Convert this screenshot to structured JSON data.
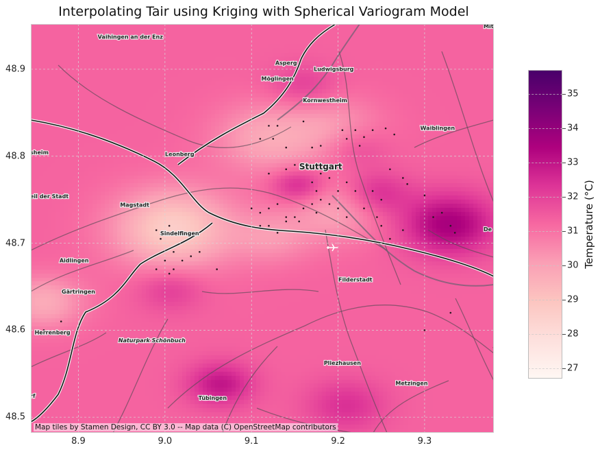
{
  "title": "Interpolating Tair using Kriging with Spherical Variogram Model",
  "map": {
    "lon_range": [
      8.845,
      9.38
    ],
    "lat_range": [
      48.482,
      48.952
    ],
    "x_ticks": [
      "8.9",
      "9.0",
      "9.1",
      "9.2",
      "9.3"
    ],
    "x_tick_values": [
      8.9,
      9.0,
      9.1,
      9.2,
      9.3
    ],
    "y_ticks": [
      "48.5",
      "48.6",
      "48.7",
      "48.8",
      "48.9"
    ],
    "y_tick_values": [
      48.5,
      48.6,
      48.7,
      48.8,
      48.9
    ],
    "grid": true,
    "base_color": "#e8609f",
    "places": [
      {
        "name": "Vaihingen an der Enz",
        "lon": 8.96,
        "lat": 48.935
      },
      {
        "name": "Asperg",
        "lon": 9.14,
        "lat": 48.905
      },
      {
        "name": "Ludwigsburg",
        "lon": 9.195,
        "lat": 48.898
      },
      {
        "name": "Möglingen",
        "lon": 9.13,
        "lat": 48.887
      },
      {
        "name": "Kornwestheim",
        "lon": 9.185,
        "lat": 48.862
      },
      {
        "name": "Waiblingen",
        "lon": 9.315,
        "lat": 48.83
      },
      {
        "name": "Leonberg",
        "lon": 9.017,
        "lat": 48.8
      },
      {
        "name": "Stuttgart",
        "lon": 9.18,
        "lat": 48.785
      },
      {
        "name": "Magstadt",
        "lon": 8.965,
        "lat": 48.742
      },
      {
        "name": "Sindelfingen",
        "lon": 9.017,
        "lat": 48.709
      },
      {
        "name": "Aidlingen",
        "lon": 8.895,
        "lat": 48.678
      },
      {
        "name": "Filderstadt",
        "lon": 9.22,
        "lat": 48.656
      },
      {
        "name": "Gärtringen",
        "lon": 8.9,
        "lat": 48.642
      },
      {
        "name": "Herrenberg",
        "lon": 8.87,
        "lat": 48.595
      },
      {
        "name": "Naturpark Schönbuch",
        "lon": 8.985,
        "lat": 48.586
      },
      {
        "name": "Pliezhausen",
        "lon": 9.205,
        "lat": 48.56
      },
      {
        "name": "Metzingen",
        "lon": 9.285,
        "lat": 48.537
      },
      {
        "name": "Tübingen",
        "lon": 9.055,
        "lat": 48.52
      }
    ],
    "edge_labels": [
      "Mit",
      "sheim",
      "eil der Stadt",
      "De",
      "rf"
    ],
    "attribution": "Map tiles by Stamen Design, CC BY 3.0 -- Map data (C) OpenStreetMap contributors"
  },
  "chart_data": {
    "type": "heatmap",
    "title": "Interpolating Tair using Kriging with Spherical Variogram Model",
    "xlabel": "",
    "ylabel": "",
    "xlim": [
      8.845,
      9.38
    ],
    "ylim": [
      48.482,
      48.952
    ],
    "field": {
      "base_value": 31.3,
      "anomalies": [
        {
          "lon": 9.01,
          "lat": 48.715,
          "value": 28.6,
          "radius": 0.045
        },
        {
          "lon": 8.86,
          "lat": 48.63,
          "value": 29.7,
          "radius": 0.03
        },
        {
          "lon": 9.12,
          "lat": 48.82,
          "value": 29.8,
          "radius": 0.04
        },
        {
          "lon": 9.2,
          "lat": 48.83,
          "value": 30.2,
          "radius": 0.035
        },
        {
          "lon": 9.2,
          "lat": 48.735,
          "value": 30.0,
          "radius": 0.035
        },
        {
          "lon": 9.125,
          "lat": 48.705,
          "value": 30.3,
          "radius": 0.03
        },
        {
          "lon": 9.33,
          "lat": 48.72,
          "value": 33.6,
          "radius": 0.035
        },
        {
          "lon": 9.155,
          "lat": 48.765,
          "value": 32.8,
          "radius": 0.02
        },
        {
          "lon": 9.245,
          "lat": 48.755,
          "value": 32.6,
          "radius": 0.025
        },
        {
          "lon": 9.22,
          "lat": 48.81,
          "value": 32.2,
          "radius": 0.025
        },
        {
          "lon": 9.16,
          "lat": 48.88,
          "value": 32.1,
          "radius": 0.025
        },
        {
          "lon": 9.065,
          "lat": 48.535,
          "value": 33.0,
          "radius": 0.025
        },
        {
          "lon": 9.21,
          "lat": 48.51,
          "value": 32.4,
          "radius": 0.03
        },
        {
          "lon": 9.007,
          "lat": 48.645,
          "value": 32.2,
          "radius": 0.025
        }
      ]
    },
    "stations": [
      [
        9.12,
        48.835
      ],
      [
        9.13,
        48.835
      ],
      [
        9.11,
        48.82
      ],
      [
        9.125,
        48.82
      ],
      [
        9.14,
        48.81
      ],
      [
        9.16,
        48.84
      ],
      [
        9.17,
        48.81
      ],
      [
        9.18,
        48.812
      ],
      [
        9.205,
        48.83
      ],
      [
        9.21,
        48.82
      ],
      [
        9.22,
        48.83
      ],
      [
        9.23,
        48.822
      ],
      [
        9.24,
        48.83
      ],
      [
        9.255,
        48.832
      ],
      [
        9.265,
        48.825
      ],
      [
        9.225,
        48.812
      ],
      [
        9.12,
        48.78
      ],
      [
        9.14,
        48.785
      ],
      [
        9.15,
        48.79
      ],
      [
        9.16,
        48.79
      ],
      [
        9.17,
        48.77
      ],
      [
        9.175,
        48.76
      ],
      [
        9.18,
        48.78
      ],
      [
        9.19,
        48.775
      ],
      [
        9.2,
        48.76
      ],
      [
        9.21,
        48.77
      ],
      [
        9.22,
        48.76
      ],
      [
        9.24,
        48.76
      ],
      [
        9.25,
        48.75
      ],
      [
        9.26,
        48.785
      ],
      [
        9.275,
        48.775
      ],
      [
        9.28,
        48.768
      ],
      [
        9.1,
        48.74
      ],
      [
        9.11,
        48.735
      ],
      [
        9.12,
        48.74
      ],
      [
        9.13,
        48.745
      ],
      [
        9.14,
        48.73
      ],
      [
        9.15,
        48.73
      ],
      [
        9.16,
        48.74
      ],
      [
        9.17,
        48.745
      ],
      [
        9.175,
        48.735
      ],
      [
        9.18,
        48.75
      ],
      [
        9.19,
        48.745
      ],
      [
        9.2,
        48.74
      ],
      [
        9.21,
        48.73
      ],
      [
        9.23,
        48.74
      ],
      [
        9.245,
        48.73
      ],
      [
        9.25,
        48.72
      ],
      [
        9.11,
        48.72
      ],
      [
        9.12,
        48.72
      ],
      [
        9.13,
        48.712
      ],
      [
        9.14,
        48.725
      ],
      [
        9.155,
        48.725
      ],
      [
        9.26,
        48.705
      ],
      [
        9.275,
        48.715
      ],
      [
        9.3,
        48.755
      ],
      [
        9.31,
        48.73
      ],
      [
        9.32,
        48.735
      ],
      [
        9.33,
        48.72
      ],
      [
        9.335,
        48.712
      ],
      [
        8.99,
        48.715
      ],
      [
        8.995,
        48.71
      ],
      [
        9.005,
        48.72
      ],
      [
        9.01,
        48.69
      ],
      [
        9.02,
        48.68
      ],
      [
        9.03,
        48.685
      ],
      [
        9.04,
        48.69
      ],
      [
        9.0,
        48.68
      ],
      [
        9.005,
        48.665
      ],
      [
        9.01,
        48.67
      ],
      [
        9.06,
        48.67
      ],
      [
        8.99,
        48.67
      ],
      [
        8.995,
        48.705
      ],
      [
        9.3,
        48.6
      ],
      [
        9.33,
        48.62
      ],
      [
        9.38,
        48.58
      ],
      [
        8.86,
        48.6
      ],
      [
        8.88,
        48.61
      ]
    ],
    "colorbar": {
      "label": "Temperature (°C)",
      "range": [
        26.7,
        35.7
      ],
      "ticks": [
        "27",
        "28",
        "29",
        "30",
        "31",
        "32",
        "33",
        "34",
        "35"
      ],
      "tick_values": [
        27,
        28,
        29,
        30,
        31,
        32,
        33,
        34,
        35
      ],
      "colormap": "RdPu",
      "stops": [
        "#fff7f3",
        "#fde0dd",
        "#fcc5c0",
        "#fa9fb5",
        "#f768a1",
        "#dd3497",
        "#ae017e",
        "#7a0177",
        "#49006a"
      ]
    }
  }
}
